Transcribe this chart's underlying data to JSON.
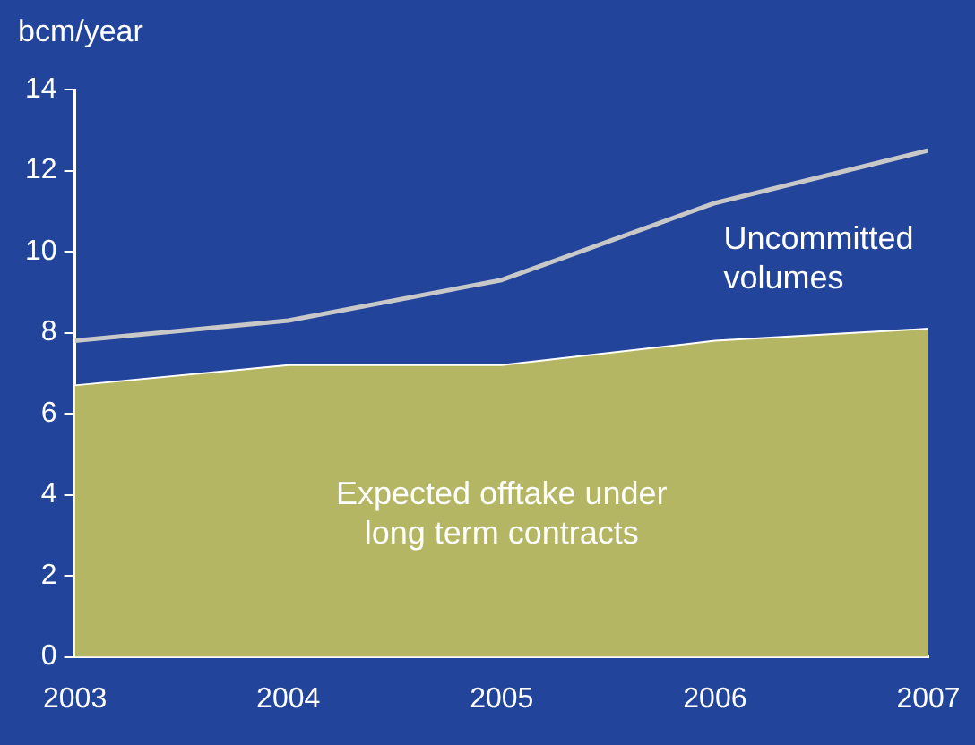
{
  "chart_data": {
    "type": "area",
    "ylabel": "bcm/year",
    "x": [
      2003,
      2004,
      2005,
      2006,
      2007
    ],
    "series": [
      {
        "name": "Expected offtake under long term contracts",
        "color": "#b4b663",
        "values": [
          6.7,
          7.2,
          7.2,
          7.8,
          8.1
        ]
      },
      {
        "name": "Uncommitted volumes",
        "type": "line",
        "color": "#c8c8c8",
        "values": [
          7.8,
          8.3,
          9.3,
          11.2,
          12.5
        ]
      }
    ],
    "xlim": [
      2003,
      2007
    ],
    "xticks": [
      2003,
      2004,
      2005,
      2006,
      2007
    ],
    "ylim": [
      0,
      14
    ],
    "yticks": [
      0,
      2,
      4,
      6,
      8,
      10,
      12,
      14
    ],
    "grid": false,
    "legend": false
  }
}
